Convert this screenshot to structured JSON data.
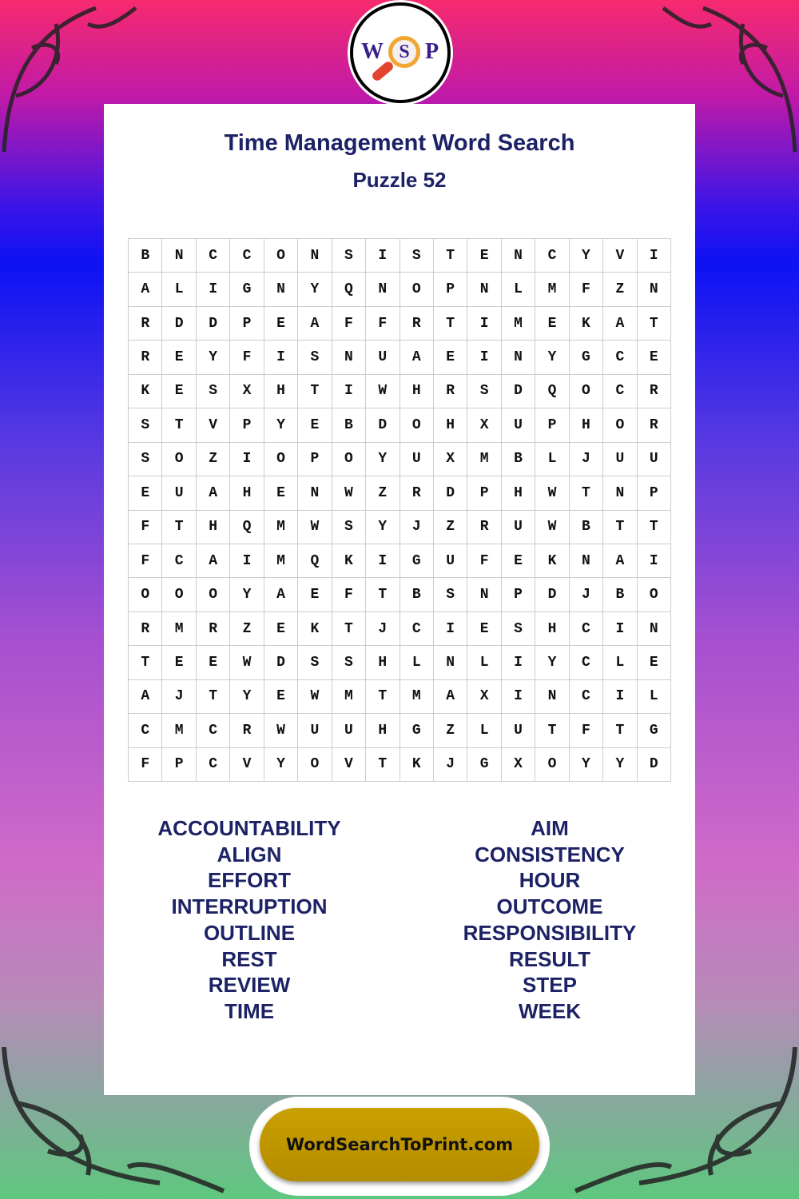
{
  "logo": {
    "letters": [
      "W",
      "S",
      "P"
    ]
  },
  "title": "Time Management Word Search",
  "subtitle": "Puzzle 52",
  "grid": [
    "BNCCONSISTENCYVI",
    "ALIGNYQNOPNLMFZN",
    "RDDPEAFFRTIMEKAT",
    "REYFISNUAEINYGCE",
    "KESXHTIWHRSDQOCR",
    "STVPYEBDOHXUPHOR",
    "SOZIOPOYUXMBLJUU",
    "EUAHENWZRDPHWTNP",
    "FTHQMWSYJZRUWBTT",
    "FCAIMQKIGUFEKNAI",
    "OOOYAEFTBSNPDJBO",
    "RMRZEKTJCIESHCIN",
    "TEEWDSSHLNLIYCLE",
    "AJTYEWMTMAXINCIL",
    "CMCRWUUHGZLUTFTG",
    "FPCVYOVTKJGXOYYD"
  ],
  "words_left": [
    "ACCOUNTABILITY",
    "ALIGN",
    "EFFORT",
    "INTERRUPTION",
    "OUTLINE",
    "REST",
    "REVIEW",
    "TIME"
  ],
  "words_right": [
    "AIM",
    "CONSISTENCY",
    "HOUR",
    "OUTCOME",
    "RESPONSIBILITY",
    "RESULT",
    "STEP",
    "WEEK"
  ],
  "footer": "WordSearchToPrint.com",
  "colors": {
    "title": "#1d2266",
    "footer": "#c9a000"
  }
}
